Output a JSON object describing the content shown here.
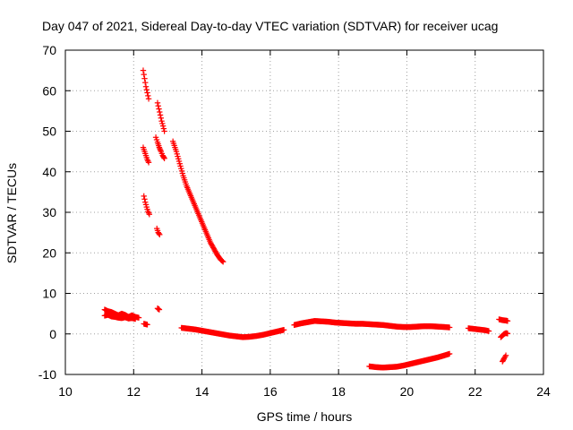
{
  "chart_data": {
    "type": "scatter",
    "title": "Day 047 of 2021, Sidereal Day-to-day VTEC variation (SDTVAR) for receiver ucag",
    "xlabel": "GPS time / hours",
    "ylabel": "SDTVAR / TECUs",
    "xlim": [
      10,
      24
    ],
    "ylim": [
      -10,
      70
    ],
    "xticks": [
      "10",
      "12",
      "14",
      "16",
      "18",
      "20",
      "22",
      "24"
    ],
    "yticks": [
      "-10",
      "0",
      "10",
      "20",
      "30",
      "40",
      "50",
      "60",
      "70"
    ],
    "grid": true,
    "marker": "plus",
    "color": "#ff0000",
    "series": [
      {
        "name": "sdtvar",
        "segments": [
          [
            [
              11.15,
              6.0
            ],
            [
              11.25,
              5.6
            ],
            [
              11.35,
              5.4
            ],
            [
              11.45,
              5.0
            ],
            [
              11.55,
              4.6
            ],
            [
              11.65,
              5.0
            ],
            [
              11.75,
              4.7
            ],
            [
              11.85,
              4.2
            ],
            [
              11.95,
              4.6
            ],
            [
              12.05,
              4.2
            ],
            [
              12.15,
              4.0
            ]
          ],
          [
            [
              11.15,
              4.5
            ],
            [
              11.25,
              4.7
            ],
            [
              11.35,
              4.3
            ],
            [
              11.45,
              4.2
            ],
            [
              11.55,
              4.0
            ],
            [
              11.65,
              3.9
            ],
            [
              11.75,
              4.1
            ],
            [
              11.85,
              3.8
            ],
            [
              11.95,
              3.9
            ],
            [
              12.05,
              3.7
            ]
          ],
          [
            [
              12.3,
              2.5
            ],
            [
              12.4,
              2.3
            ]
          ],
          [
            [
              12.7,
              6.3
            ],
            [
              12.75,
              6.0
            ]
          ],
          [
            [
              12.28,
              65.0
            ],
            [
              12.32,
              63.0
            ],
            [
              12.36,
              61.0
            ],
            [
              12.4,
              59.5
            ],
            [
              12.44,
              58.0
            ]
          ],
          [
            [
              12.28,
              46.0
            ],
            [
              12.32,
              45.0
            ],
            [
              12.36,
              44.0
            ],
            [
              12.4,
              43.0
            ],
            [
              12.44,
              42.3
            ]
          ],
          [
            [
              12.3,
              34.0
            ],
            [
              12.34,
              32.5
            ],
            [
              12.38,
              31.3
            ],
            [
              12.42,
              30.2
            ],
            [
              12.46,
              29.5
            ]
          ],
          [
            [
              12.7,
              57.0
            ],
            [
              12.74,
              55.5
            ],
            [
              12.78,
              54.0
            ],
            [
              12.82,
              52.5
            ],
            [
              12.86,
              51.3
            ],
            [
              12.9,
              50.0
            ]
          ],
          [
            [
              12.65,
              48.5
            ],
            [
              12.7,
              47.3
            ],
            [
              12.75,
              46.0
            ],
            [
              12.8,
              45.0
            ],
            [
              12.85,
              44.0
            ],
            [
              12.9,
              43.3
            ]
          ],
          [
            [
              12.68,
              26.0
            ],
            [
              12.72,
              25.0
            ],
            [
              12.76,
              24.5
            ]
          ],
          [
            [
              13.15,
              47.5
            ],
            [
              13.25,
              45.0
            ],
            [
              13.35,
              42.0
            ],
            [
              13.45,
              39.0
            ],
            [
              13.55,
              36.5
            ],
            [
              13.65,
              34.5
            ],
            [
              13.75,
              32.5
            ],
            [
              13.85,
              30.5
            ],
            [
              13.95,
              28.5
            ],
            [
              14.05,
              26.5
            ],
            [
              14.15,
              24.5
            ],
            [
              14.25,
              22.5
            ],
            [
              14.35,
              21.0
            ],
            [
              14.45,
              19.5
            ],
            [
              14.55,
              18.3
            ],
            [
              14.62,
              17.8
            ]
          ],
          [
            [
              13.4,
              1.5
            ],
            [
              13.6,
              1.3
            ],
            [
              13.8,
              1.1
            ],
            [
              14.0,
              0.8
            ],
            [
              14.2,
              0.5
            ],
            [
              14.4,
              0.2
            ],
            [
              14.6,
              -0.1
            ],
            [
              14.8,
              -0.4
            ],
            [
              15.0,
              -0.6
            ],
            [
              15.2,
              -0.8
            ],
            [
              15.4,
              -0.7
            ],
            [
              15.6,
              -0.5
            ],
            [
              15.8,
              -0.2
            ],
            [
              16.0,
              0.2
            ],
            [
              16.2,
              0.6
            ],
            [
              16.4,
              1.0
            ]
          ],
          [
            [
              16.7,
              2.2
            ],
            [
              16.9,
              2.6
            ],
            [
              17.1,
              2.9
            ],
            [
              17.3,
              3.2
            ],
            [
              17.5,
              3.1
            ],
            [
              17.7,
              3.0
            ],
            [
              17.9,
              2.8
            ],
            [
              18.1,
              2.7
            ],
            [
              18.3,
              2.6
            ],
            [
              18.5,
              2.5
            ],
            [
              18.7,
              2.5
            ],
            [
              18.9,
              2.4
            ],
            [
              19.1,
              2.3
            ],
            [
              19.3,
              2.2
            ],
            [
              19.5,
              2.0
            ],
            [
              19.7,
              1.8
            ],
            [
              19.9,
              1.7
            ],
            [
              20.1,
              1.7
            ],
            [
              20.3,
              1.8
            ],
            [
              20.5,
              1.9
            ],
            [
              20.7,
              1.9
            ],
            [
              20.9,
              1.8
            ],
            [
              21.1,
              1.7
            ],
            [
              21.25,
              1.6
            ]
          ],
          [
            [
              18.9,
              -8.0
            ],
            [
              19.1,
              -8.2
            ],
            [
              19.3,
              -8.3
            ],
            [
              19.5,
              -8.2
            ],
            [
              19.7,
              -8.1
            ],
            [
              19.9,
              -7.8
            ],
            [
              20.1,
              -7.4
            ],
            [
              20.3,
              -7.0
            ],
            [
              20.5,
              -6.6
            ],
            [
              20.7,
              -6.2
            ],
            [
              20.9,
              -5.8
            ],
            [
              21.1,
              -5.3
            ],
            [
              21.25,
              -4.9
            ]
          ],
          [
            [
              21.8,
              1.4
            ],
            [
              21.9,
              1.3
            ],
            [
              22.0,
              1.2
            ],
            [
              22.1,
              1.1
            ],
            [
              22.2,
              1.0
            ],
            [
              22.3,
              0.9
            ],
            [
              22.4,
              0.7
            ]
          ],
          [
            [
              22.7,
              3.6
            ],
            [
              22.8,
              3.4
            ],
            [
              22.9,
              3.3
            ],
            [
              22.95,
              3.2
            ]
          ],
          [
            [
              22.75,
              -0.8
            ],
            [
              22.8,
              -0.4
            ],
            [
              22.85,
              0.0
            ],
            [
              22.9,
              0.2
            ],
            [
              22.95,
              0.1
            ]
          ],
          [
            [
              22.8,
              -6.8
            ],
            [
              22.85,
              -6.0
            ],
            [
              22.9,
              -5.3
            ]
          ]
        ]
      }
    ]
  }
}
